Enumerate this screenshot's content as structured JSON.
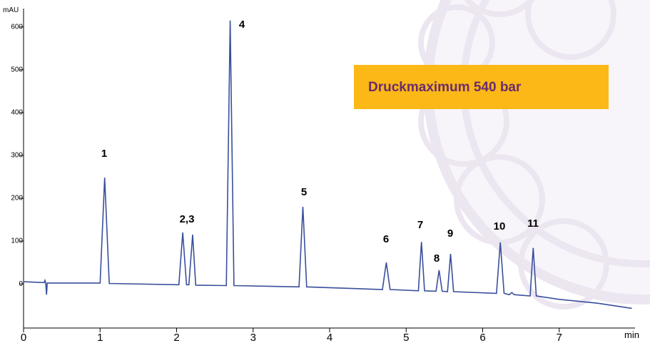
{
  "chart_data": {
    "type": "line",
    "y_label": "mAU",
    "x_label": "min",
    "annotation": "Druckmaximum 540 bar",
    "peak_labels": [
      "1",
      "2,3",
      "4",
      "5",
      "6",
      "7",
      "8",
      "9",
      "10",
      "11"
    ],
    "color": "#3a4f9c",
    "x": [
      0,
      0.27,
      0.28,
      0.29,
      0.3,
      0.31,
      1.0,
      1.06,
      1.12,
      2.03,
      2.08,
      2.13,
      2.16,
      2.21,
      2.25,
      2.65,
      2.7,
      2.75,
      3.6,
      3.65,
      3.7,
      4.69,
      4.74,
      4.79,
      5.16,
      5.2,
      5.24,
      5.39,
      5.43,
      5.47,
      5.54,
      5.58,
      5.62,
      6.18,
      6.23,
      6.28,
      6.35,
      6.38,
      6.41,
      6.62,
      6.66,
      6.7,
      7.0,
      7.5,
      7.95
    ],
    "values": [
      5,
      3,
      8,
      2,
      -25,
      2,
      2,
      248,
      1,
      -2,
      120,
      -2,
      -2,
      115,
      -3,
      -4,
      615,
      -4,
      -7,
      180,
      -7,
      -13,
      50,
      -13,
      -16,
      98,
      -16,
      -17,
      32,
      -17,
      -18,
      70,
      -18,
      -22,
      97,
      -22,
      -25,
      -20,
      -25,
      -28,
      84,
      -28,
      -36,
      -45,
      -57
    ],
    "xlim": [
      0,
      8
    ],
    "ylim": [
      -103,
      643
    ],
    "xticks": [
      0,
      1,
      2,
      3,
      4,
      5,
      6,
      7
    ],
    "yticks": [
      0,
      100,
      200,
      300,
      400,
      500,
      600
    ]
  }
}
